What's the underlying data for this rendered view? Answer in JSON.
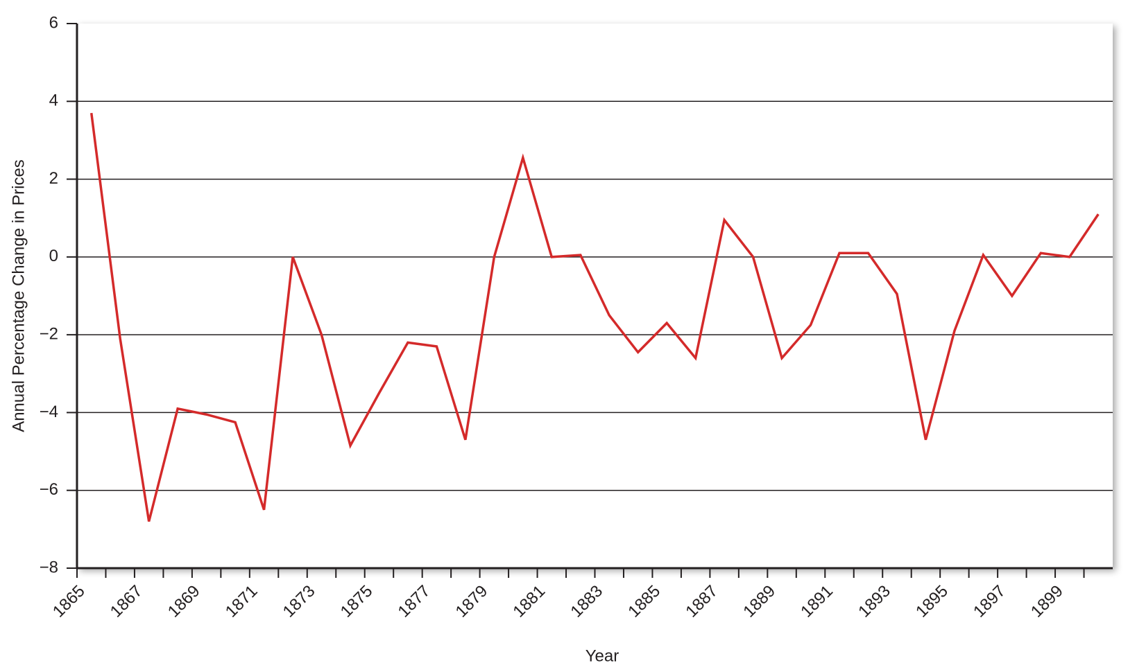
{
  "chart_data": {
    "type": "line",
    "y_label": "Annual Percentage Change in Prices",
    "x_label": "Year",
    "categories": [
      "1865",
      null,
      "1867",
      null,
      "1869",
      null,
      "1871",
      null,
      "1873",
      null,
      "1875",
      null,
      "1877",
      null,
      "1879",
      null,
      "1881",
      null,
      "1883",
      null,
      "1885",
      null,
      "1887",
      null,
      "1889",
      null,
      "1891",
      null,
      "1893",
      null,
      "1895",
      null,
      "1897",
      null,
      "1899",
      null
    ],
    "series": [
      {
        "color": "#d42a2a",
        "values": [
          3.7,
          -2.1,
          -6.8,
          -3.9,
          -4.05,
          -4.25,
          -6.5,
          0.0,
          -2.0,
          -4.85,
          -3.5,
          -2.2,
          -2.3,
          -4.7,
          0.0,
          2.55,
          0.0,
          0.05,
          -1.5,
          -2.45,
          -1.7,
          -2.6,
          0.95,
          0.0,
          -2.6,
          -1.75,
          0.1,
          0.1,
          -0.95,
          -4.7,
          -1.9,
          0.05,
          -1.0,
          0.1,
          0.0,
          1.1
        ]
      }
    ],
    "ylim": [
      -8,
      6
    ],
    "yticks": [
      {
        "value": -8,
        "label": "−8"
      },
      {
        "value": -6,
        "label": "−6"
      },
      {
        "value": -4,
        "label": "−4"
      },
      {
        "value": -2,
        "label": "−2"
      },
      0,
      2,
      4,
      6
    ],
    "grid": true
  }
}
